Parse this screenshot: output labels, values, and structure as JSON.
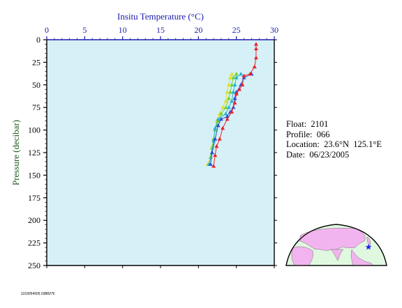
{
  "chart_data": {
    "type": "line",
    "title": "Insitu Temperature (°C)",
    "xlabel": "Insitu Temperature (°C)",
    "ylabel": "Pressure (decibar)",
    "xlim": [
      0,
      30
    ],
    "ylim": [
      0,
      250
    ],
    "y_inverted": true,
    "x_axis_position": "top",
    "x_ticks": [
      "0",
      "5",
      "10",
      "15",
      "20",
      "25",
      "30"
    ],
    "y_ticks": [
      "0",
      "25",
      "50",
      "75",
      "100",
      "125",
      "150",
      "175",
      "200",
      "225",
      "250"
    ],
    "plot_background": "#d6f0f7",
    "series": [
      {
        "color": "#e8252a",
        "points": [
          [
            27.6,
            5
          ],
          [
            27.6,
            10
          ],
          [
            27.6,
            20
          ],
          [
            27.4,
            30
          ],
          [
            26.8,
            38
          ],
          [
            26.0,
            40
          ],
          [
            25.8,
            50
          ],
          [
            25.4,
            55
          ],
          [
            25.0,
            60
          ],
          [
            24.8,
            70
          ],
          [
            24.4,
            80
          ],
          [
            23.8,
            88
          ],
          [
            23.2,
            98
          ],
          [
            22.8,
            110
          ],
          [
            22.4,
            118
          ],
          [
            22.2,
            128
          ],
          [
            22.0,
            140
          ]
        ]
      },
      {
        "color": "#2f4fd8",
        "points": [
          [
            27.0,
            38
          ],
          [
            26.0,
            42
          ],
          [
            25.6,
            50
          ],
          [
            25.0,
            58
          ],
          [
            24.8,
            65
          ],
          [
            24.6,
            75
          ],
          [
            24.2,
            80
          ],
          [
            23.8,
            85
          ],
          [
            23.0,
            88
          ],
          [
            22.6,
            95
          ],
          [
            22.2,
            110
          ],
          [
            21.8,
            125
          ],
          [
            21.6,
            138
          ]
        ]
      },
      {
        "color": "#27b2cf",
        "points": [
          [
            25.6,
            38
          ],
          [
            25.0,
            42
          ],
          [
            24.8,
            50
          ],
          [
            24.6,
            58
          ],
          [
            24.4,
            68
          ],
          [
            24.0,
            75
          ],
          [
            23.6,
            82
          ],
          [
            22.6,
            88
          ],
          [
            22.2,
            98
          ],
          [
            22.0,
            112
          ],
          [
            21.8,
            125
          ],
          [
            21.4,
            138
          ]
        ]
      },
      {
        "color": "#74d435",
        "points": [
          [
            25.0,
            38
          ],
          [
            24.6,
            42
          ],
          [
            24.4,
            50
          ],
          [
            24.2,
            58
          ],
          [
            24.0,
            65
          ],
          [
            23.6,
            75
          ],
          [
            23.0,
            82
          ],
          [
            22.6,
            90
          ],
          [
            22.2,
            100
          ],
          [
            22.0,
            110
          ],
          [
            21.8,
            120
          ],
          [
            21.6,
            130
          ],
          [
            21.4,
            138
          ]
        ]
      },
      {
        "color": "#e3df2b",
        "points": [
          [
            24.4,
            38
          ],
          [
            24.2,
            42
          ],
          [
            24.0,
            50
          ],
          [
            23.8,
            58
          ],
          [
            23.6,
            68
          ],
          [
            23.2,
            75
          ],
          [
            22.8,
            82
          ],
          [
            22.4,
            90
          ],
          [
            22.2,
            100
          ],
          [
            22.0,
            110
          ],
          [
            21.8,
            118
          ],
          [
            21.6,
            130
          ],
          [
            21.2,
            138
          ]
        ]
      }
    ]
  },
  "info": {
    "float_line": "Float:  2101",
    "profile_line": "Profile:  066",
    "location_line": "Location:  23.6°N  125.1°E",
    "date_line": "Date:  06/23/2005"
  },
  "footer_id": "1163054505.0388276",
  "colors": {
    "axis_blue": "#1a1ab0",
    "plot_bg": "#d6f0f7",
    "ocean": "#e0f8e0",
    "land": "#f2b4ee",
    "marker": "#1a1aff"
  },
  "location_map": {
    "float_lat": 23.6,
    "float_lon": 125.1
  }
}
